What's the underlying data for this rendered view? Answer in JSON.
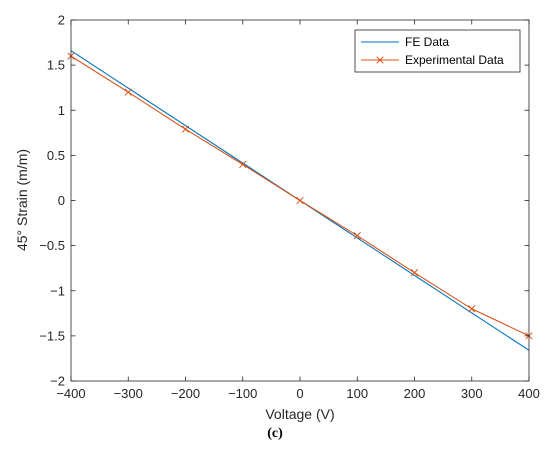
{
  "caption": "(c)",
  "chart_data": {
    "type": "line",
    "xlabel": "Voltage (V)",
    "ylabel": "45° Strain (m/m)",
    "xlim": [
      -400,
      400
    ],
    "ylim": [
      -2,
      2
    ],
    "x_ticks": [
      -400,
      -300,
      -200,
      -100,
      0,
      100,
      200,
      300,
      400
    ],
    "x_tick_labels": [
      "−400",
      "−300",
      "−200",
      "−100",
      "0",
      "100",
      "200",
      "300",
      "400"
    ],
    "y_ticks": [
      -2,
      -1.5,
      -1,
      -0.5,
      0,
      0.5,
      1,
      1.5,
      2
    ],
    "y_tick_labels": [
      "−2",
      "−1.5",
      "−1",
      "−0.5",
      "0",
      "0.5",
      "1",
      "1.5",
      "2"
    ],
    "grid": false,
    "legend_position": "top-right",
    "series": [
      {
        "name": "FE Data",
        "color": "#0072BD",
        "marker": "none",
        "x": [
          -400,
          400
        ],
        "y": [
          1.66,
          -1.66
        ]
      },
      {
        "name": "Experimental Data",
        "color": "#D95319",
        "marker": "x",
        "x": [
          -400,
          -300,
          -200,
          -100,
          0,
          100,
          200,
          300,
          400
        ],
        "y": [
          1.6,
          1.2,
          0.79,
          0.4,
          0.0,
          -0.39,
          -0.8,
          -1.2,
          -1.5
        ]
      }
    ]
  }
}
